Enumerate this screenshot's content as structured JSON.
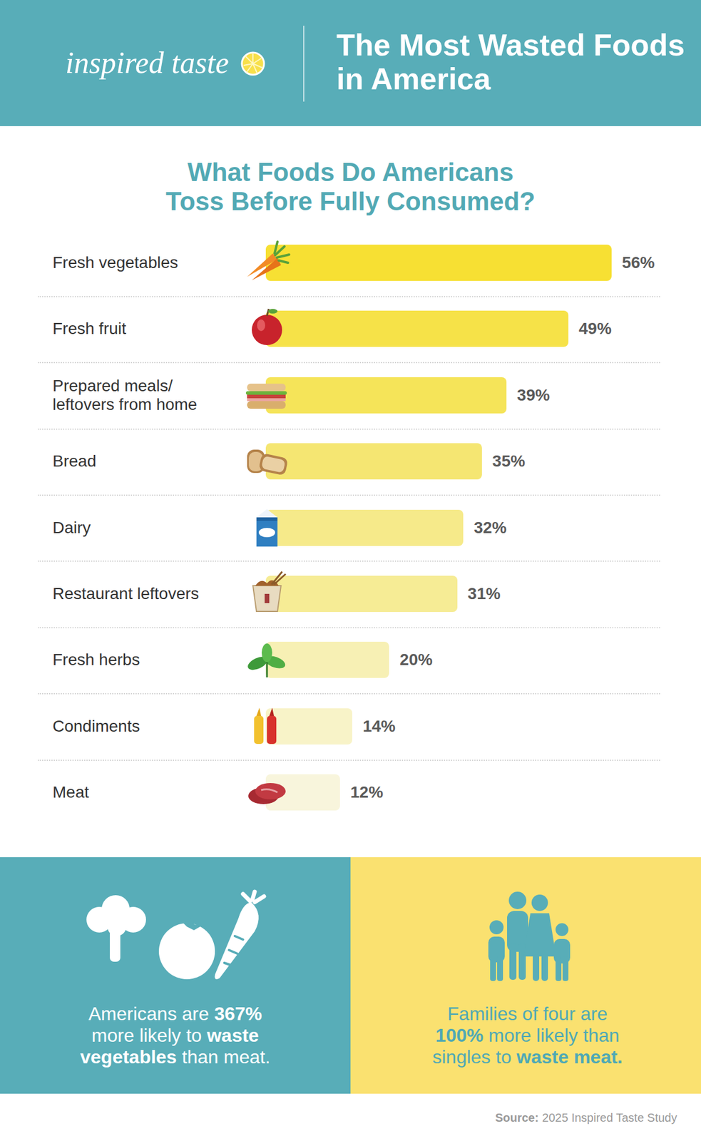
{
  "header": {
    "brand": "inspired taste",
    "title": "The Most Wasted Foods in America"
  },
  "chart_data": {
    "type": "bar",
    "orientation": "horizontal",
    "title": "What Foods Do Americans Toss Before Fully Consumed?",
    "categories": [
      "Fresh vegetables",
      "Fresh fruit",
      "Prepared meals/ leftovers from home",
      "Bread",
      "Dairy",
      "Restaurant leftovers",
      "Fresh herbs",
      "Condiments",
      "Meat"
    ],
    "values": [
      56,
      49,
      39,
      35,
      32,
      31,
      20,
      14,
      12
    ],
    "value_labels": [
      "56%",
      "49%",
      "39%",
      "35%",
      "32%",
      "31%",
      "20%",
      "14%",
      "12%"
    ],
    "colors": [
      "#f7e033",
      "#f6e248",
      "#f5e459",
      "#f5e672",
      "#f6ea8a",
      "#f6ec95",
      "#f7f0b4",
      "#f8f3c8",
      "#f8f5dc"
    ],
    "xlim": [
      0,
      60
    ],
    "data_labels": true,
    "tick_labels": false,
    "grid": false
  },
  "callouts": [
    [
      "Americans are ",
      "367%",
      " more likely to ",
      "waste vegetables",
      " than meat."
    ],
    [
      "Families of four are ",
      "100%",
      " more likely than singles to ",
      "waste meat."
    ]
  ],
  "source": {
    "label": "Source:",
    "text": "2025 Inspired Taste Study"
  }
}
